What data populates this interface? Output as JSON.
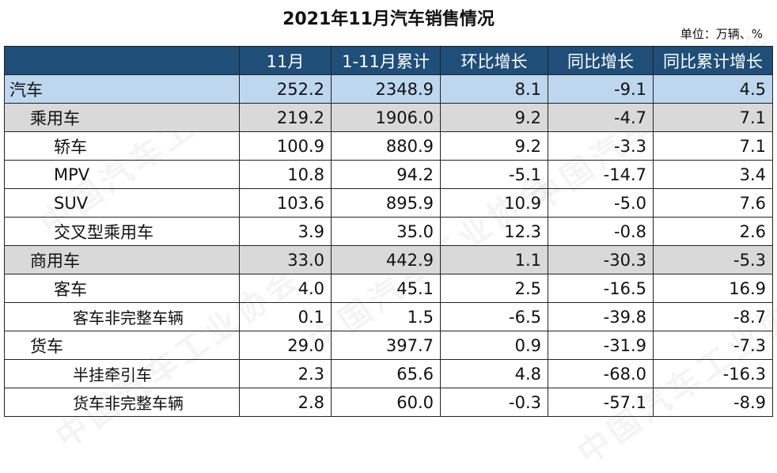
{
  "title": "2021年11月汽车销售情况",
  "unit": "单位：万辆、%",
  "watermark": "中国汽车工业协会",
  "columns": [
    "",
    "11月",
    "1-11月累计",
    "环比增长",
    "同比增长",
    "同比累计增长"
  ],
  "rows": [
    {
      "label": "汽车",
      "level": 0,
      "style": "total",
      "values": [
        "252.2",
        "2348.9",
        "8.1",
        "-9.1",
        "4.5"
      ]
    },
    {
      "label": "乘用车",
      "level": 1,
      "style": "group",
      "values": [
        "219.2",
        "1906.0",
        "9.2",
        "-4.7",
        "7.1"
      ]
    },
    {
      "label": "轿车",
      "level": 2,
      "style": "plain",
      "values": [
        "100.9",
        "880.9",
        "9.2",
        "-3.3",
        "7.1"
      ]
    },
    {
      "label": "MPV",
      "level": 2,
      "style": "plain",
      "values": [
        "10.8",
        "94.2",
        "-5.1",
        "-14.7",
        "3.4"
      ]
    },
    {
      "label": "SUV",
      "level": 2,
      "style": "plain",
      "values": [
        "103.6",
        "895.9",
        "10.9",
        "-5.0",
        "7.6"
      ]
    },
    {
      "label": "交叉型乘用车",
      "level": 2,
      "style": "plain",
      "values": [
        "3.9",
        "35.0",
        "12.3",
        "-0.8",
        "2.6"
      ]
    },
    {
      "label": "商用车",
      "level": 1,
      "style": "group",
      "values": [
        "33.0",
        "442.9",
        "1.1",
        "-30.3",
        "-5.3"
      ]
    },
    {
      "label": "客车",
      "level": 2,
      "style": "plain",
      "values": [
        "4.0",
        "45.1",
        "2.5",
        "-16.5",
        "16.9"
      ]
    },
    {
      "label": "客车非完整车辆",
      "level": 3,
      "style": "plain",
      "values": [
        "0.1",
        "1.5",
        "-6.5",
        "-39.8",
        "-8.7"
      ]
    },
    {
      "label": "货车",
      "level": 1,
      "style": "plain",
      "values": [
        "29.0",
        "397.7",
        "0.9",
        "-31.9",
        "-7.3"
      ]
    },
    {
      "label": "半挂牵引车",
      "level": 3,
      "style": "plain",
      "values": [
        "2.3",
        "65.6",
        "4.8",
        "-68.0",
        "-16.3"
      ]
    },
    {
      "label": "货车非完整车辆",
      "level": 3,
      "style": "plain",
      "values": [
        "2.8",
        "60.0",
        "-0.3",
        "-57.1",
        "-8.9"
      ]
    }
  ]
}
